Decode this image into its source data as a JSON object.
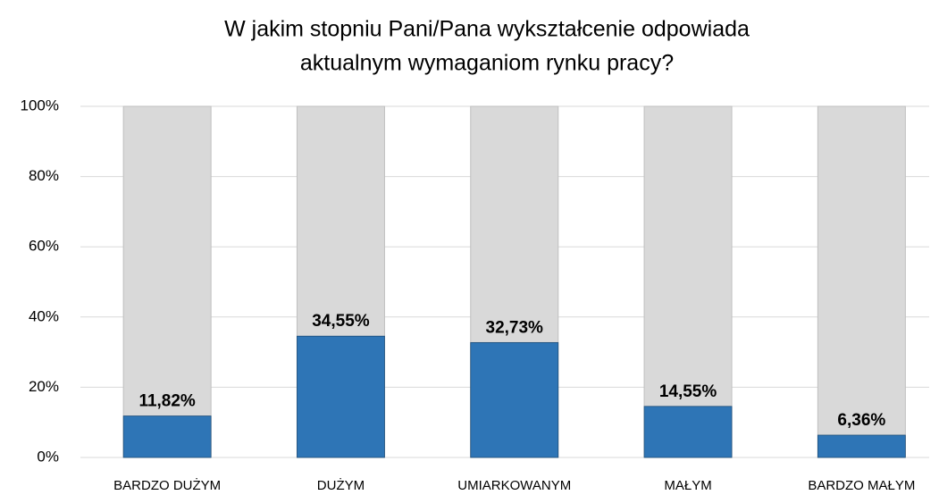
{
  "chart_data": {
    "type": "bar",
    "title": [
      "W jakim stopniu Pani/Pana wykształcenie odpowiada",
      "aktualnym wymaganiom rynku pracy?"
    ],
    "categories": [
      "BARDZO DUŻYM",
      "DUŻYM",
      "UMIARKOWANYM",
      "MAŁYM",
      "BARDZO MAŁYM"
    ],
    "values": [
      11.82,
      34.55,
      32.73,
      14.55,
      6.36
    ],
    "value_labels": [
      "11,82%",
      "34,55%",
      "32,73%",
      "14,55%",
      "6,36%"
    ],
    "color": "#2e75b6",
    "background_color": "#d9d9d9",
    "ylim": [
      0,
      100
    ],
    "yticks": [
      {
        "value": 0,
        "label": "0%"
      },
      {
        "value": 20,
        "label": "20%"
      },
      {
        "value": 40,
        "label": "40%"
      },
      {
        "value": 60,
        "label": "60%"
      },
      {
        "value": 80,
        "label": "80%"
      },
      {
        "value": 100,
        "label": "100%"
      }
    ],
    "grid": true
  }
}
